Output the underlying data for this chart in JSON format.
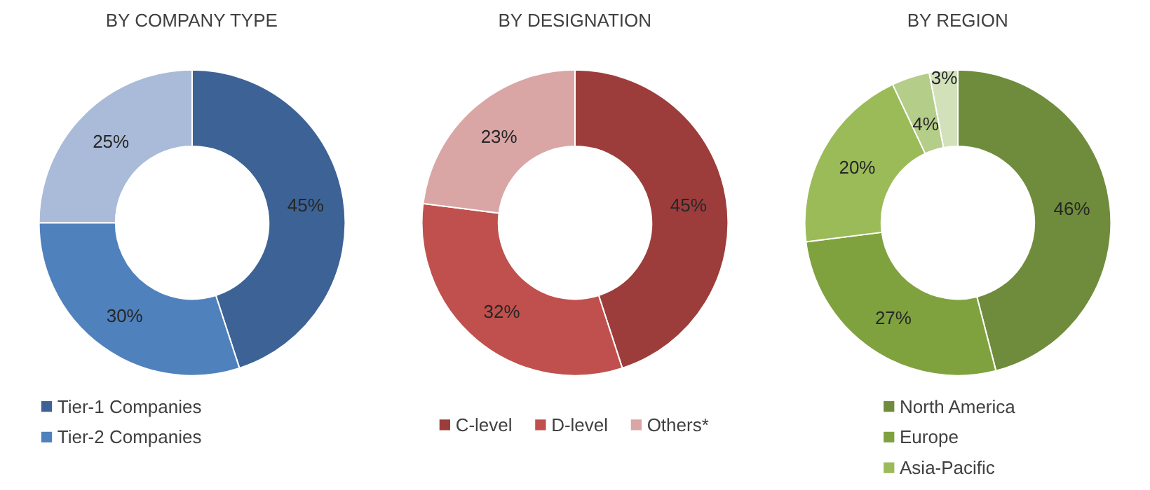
{
  "chart_data": [
    {
      "type": "donut",
      "title": "BY COMPANY TYPE",
      "categories": [
        "Tier-1 Companies",
        "Tier-2 Companies",
        null
      ],
      "values": [
        45,
        30,
        25
      ],
      "value_labels": [
        "45%",
        "30%",
        "25%"
      ],
      "colors": [
        "#3d6396",
        "#4f81bd",
        "#a9bbd8"
      ],
      "legend": "bottom"
    },
    {
      "type": "donut",
      "title": "BY DESIGNATION",
      "categories": [
        "C-level",
        "D-level",
        "Others*"
      ],
      "values": [
        45,
        32,
        23
      ],
      "value_labels": [
        "45%",
        "32%",
        "23%"
      ],
      "colors": [
        "#9c3d3b",
        "#c0504d",
        "#d9a6a5"
      ],
      "legend": "bottom"
    },
    {
      "type": "donut",
      "title": "BY REGION",
      "categories": [
        "North America",
        "Europe",
        "Asia-Pacific",
        null,
        null
      ],
      "values": [
        46,
        27,
        20,
        4,
        3
      ],
      "value_labels": [
        "46%",
        "27%",
        "20%",
        "4%",
        "3%"
      ],
      "colors": [
        "#6f8c3c",
        "#7fa23f",
        "#9bbb59",
        "#b4cd88",
        "#d3e1bb"
      ],
      "legend": "bottom"
    }
  ]
}
